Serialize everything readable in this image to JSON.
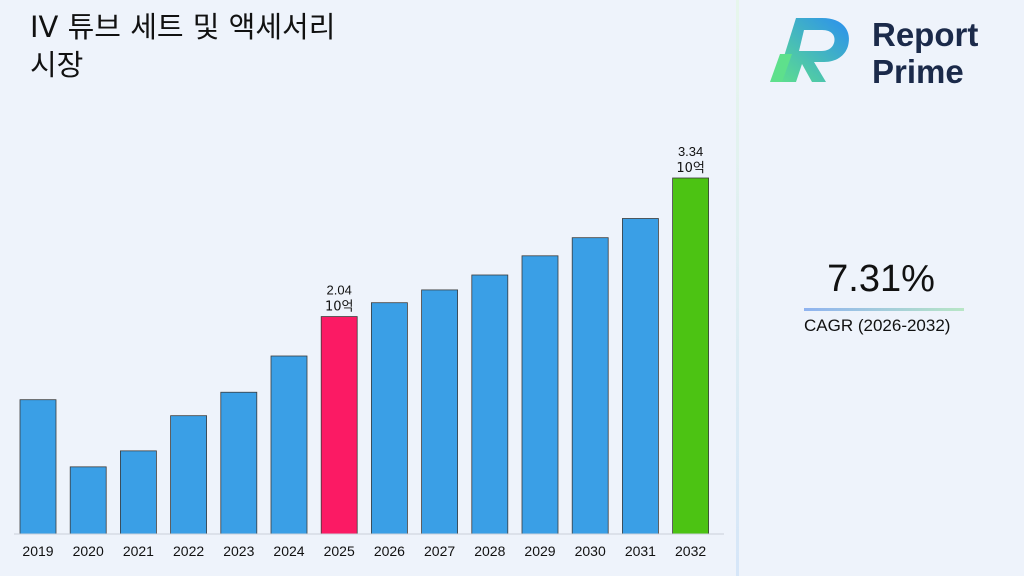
{
  "header": {
    "title_line1": "IV 튜브 세트 및 액세서리",
    "title_line2": "시장"
  },
  "brand": {
    "name_line1": "Report",
    "name_line2": "Prime",
    "logo_icon": "report-prime-logo-icon"
  },
  "summary": {
    "cagr_value": "7.31%",
    "cagr_label": "CAGR (2026-2032)"
  },
  "colors": {
    "default_bar": "#3a9fe6",
    "highlight_2025": "#fb1a64",
    "highlight_2032": "#4cc313"
  },
  "chart_data": {
    "type": "bar",
    "categories": [
      "2019",
      "2020",
      "2021",
      "2022",
      "2023",
      "2024",
      "2025",
      "2026",
      "2027",
      "2028",
      "2029",
      "2030",
      "2031",
      "2032"
    ],
    "values": [
      1.26,
      0.63,
      0.78,
      1.11,
      1.33,
      1.67,
      2.04,
      2.17,
      2.29,
      2.43,
      2.61,
      2.78,
      2.96,
      3.34
    ],
    "bar_colors": [
      "#3a9fe6",
      "#3a9fe6",
      "#3a9fe6",
      "#3a9fe6",
      "#3a9fe6",
      "#3a9fe6",
      "#fb1a64",
      "#3a9fe6",
      "#3a9fe6",
      "#3a9fe6",
      "#3a9fe6",
      "#3a9fe6",
      "#3a9fe6",
      "#4cc313"
    ],
    "data_labels": [
      {
        "category": "2025",
        "value_text": "2.04",
        "unit_text": "10억"
      },
      {
        "category": "2032",
        "value_text": "3.34",
        "unit_text": "10억"
      }
    ],
    "ylim": [
      0,
      3.34
    ],
    "grid": false,
    "legend": "none"
  }
}
